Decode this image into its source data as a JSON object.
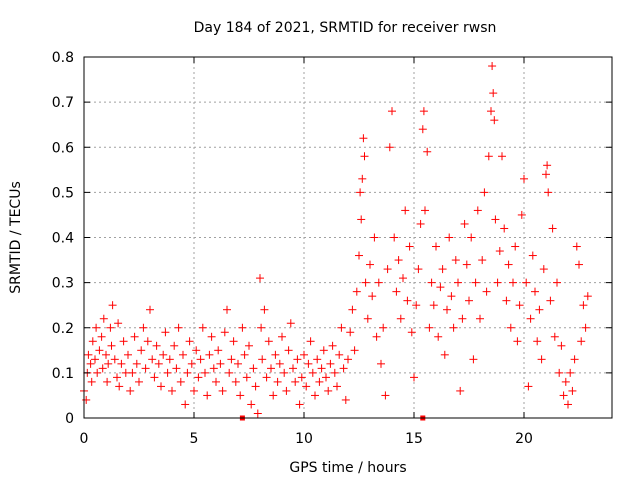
{
  "chart_data": {
    "type": "scatter",
    "title": "Day 184 of 2021, SRMTID for receiver rwsn",
    "xlabel": "GPS time / hours",
    "ylabel": "SRMTID / TECUs",
    "xlim": [
      0,
      24
    ],
    "ylim": [
      0,
      0.8
    ],
    "xticks": [
      0,
      5,
      10,
      15,
      20
    ],
    "yticks": [
      0,
      0.1,
      0.2,
      0.3,
      0.4,
      0.5,
      0.6,
      0.7,
      0.8
    ],
    "xtick_labels": [
      "0",
      "5",
      "10",
      "15",
      "20"
    ],
    "ytick_labels": [
      "0",
      "0.1",
      "0.2",
      "0.3",
      "0.4",
      "0.5",
      "0.6",
      "0.7",
      "0.8"
    ],
    "grid": true,
    "marker": "plus",
    "series": [
      {
        "name": "SRMTID",
        "color": "#ff0000",
        "points": [
          [
            0.0,
            0.06
          ],
          [
            0.1,
            0.04
          ],
          [
            0.15,
            0.1
          ],
          [
            0.2,
            0.14
          ],
          [
            0.3,
            0.12
          ],
          [
            0.35,
            0.08
          ],
          [
            0.4,
            0.17
          ],
          [
            0.5,
            0.13
          ],
          [
            0.55,
            0.2
          ],
          [
            0.6,
            0.1
          ],
          [
            0.7,
            0.15
          ],
          [
            0.8,
            0.18
          ],
          [
            0.85,
            0.11
          ],
          [
            0.9,
            0.22
          ],
          [
            1.0,
            0.14
          ],
          [
            1.05,
            0.08
          ],
          [
            1.1,
            0.12
          ],
          [
            1.2,
            0.2
          ],
          [
            1.25,
            0.16
          ],
          [
            1.3,
            0.25
          ],
          [
            1.4,
            0.13
          ],
          [
            1.5,
            0.09
          ],
          [
            1.55,
            0.21
          ],
          [
            1.6,
            0.07
          ],
          [
            1.7,
            0.12
          ],
          [
            1.8,
            0.17
          ],
          [
            1.9,
            0.1
          ],
          [
            2.0,
            0.14
          ],
          [
            2.1,
            0.06
          ],
          [
            2.2,
            0.1
          ],
          [
            2.3,
            0.18
          ],
          [
            2.4,
            0.12
          ],
          [
            2.5,
            0.08
          ],
          [
            2.6,
            0.15
          ],
          [
            2.7,
            0.2
          ],
          [
            2.8,
            0.11
          ],
          [
            2.9,
            0.17
          ],
          [
            3.0,
            0.24
          ],
          [
            3.1,
            0.13
          ],
          [
            3.2,
            0.09
          ],
          [
            3.3,
            0.16
          ],
          [
            3.4,
            0.12
          ],
          [
            3.5,
            0.07
          ],
          [
            3.6,
            0.14
          ],
          [
            3.7,
            0.19
          ],
          [
            3.8,
            0.1
          ],
          [
            3.9,
            0.13
          ],
          [
            4.0,
            0.06
          ],
          [
            4.1,
            0.16
          ],
          [
            4.2,
            0.11
          ],
          [
            4.3,
            0.2
          ],
          [
            4.4,
            0.08
          ],
          [
            4.5,
            0.14
          ],
          [
            4.6,
            0.03
          ],
          [
            4.7,
            0.1
          ],
          [
            4.8,
            0.17
          ],
          [
            4.9,
            0.12
          ],
          [
            5.0,
            0.06
          ],
          [
            5.1,
            0.15
          ],
          [
            5.2,
            0.09
          ],
          [
            5.3,
            0.13
          ],
          [
            5.4,
            0.2
          ],
          [
            5.5,
            0.1
          ],
          [
            5.6,
            0.05
          ],
          [
            5.7,
            0.14
          ],
          [
            5.8,
            0.18
          ],
          [
            5.9,
            0.11
          ],
          [
            6.0,
            0.08
          ],
          [
            6.1,
            0.15
          ],
          [
            6.2,
            0.12
          ],
          [
            6.3,
            0.06
          ],
          [
            6.4,
            0.19
          ],
          [
            6.5,
            0.24
          ],
          [
            6.6,
            0.1
          ],
          [
            6.7,
            0.13
          ],
          [
            6.8,
            0.17
          ],
          [
            6.9,
            0.08
          ],
          [
            7.0,
            0.12
          ],
          [
            7.1,
            0.05
          ],
          [
            7.2,
            0.2
          ],
          [
            7.3,
            0.14
          ],
          [
            7.4,
            0.09
          ],
          [
            7.5,
            0.16
          ],
          [
            7.6,
            0.03
          ],
          [
            7.7,
            0.11
          ],
          [
            7.8,
            0.07
          ],
          [
            7.9,
            0.01
          ],
          [
            8.0,
            0.31
          ],
          [
            8.05,
            0.2
          ],
          [
            8.1,
            0.13
          ],
          [
            8.2,
            0.24
          ],
          [
            8.3,
            0.09
          ],
          [
            8.4,
            0.17
          ],
          [
            8.5,
            0.11
          ],
          [
            8.6,
            0.05
          ],
          [
            8.7,
            0.14
          ],
          [
            8.8,
            0.08
          ],
          [
            8.9,
            0.12
          ],
          [
            9.0,
            0.18
          ],
          [
            9.1,
            0.1
          ],
          [
            9.2,
            0.06
          ],
          [
            9.3,
            0.15
          ],
          [
            9.4,
            0.21
          ],
          [
            9.5,
            0.11
          ],
          [
            9.6,
            0.08
          ],
          [
            9.7,
            0.13
          ],
          [
            9.8,
            0.03
          ],
          [
            9.9,
            0.09
          ],
          [
            10.0,
            0.14
          ],
          [
            10.1,
            0.07
          ],
          [
            10.2,
            0.12
          ],
          [
            10.3,
            0.17
          ],
          [
            10.4,
            0.1
          ],
          [
            10.5,
            0.05
          ],
          [
            10.6,
            0.13
          ],
          [
            10.7,
            0.08
          ],
          [
            10.8,
            0.11
          ],
          [
            10.9,
            0.15
          ],
          [
            11.0,
            0.09
          ],
          [
            11.1,
            0.06
          ],
          [
            11.2,
            0.12
          ],
          [
            11.3,
            0.16
          ],
          [
            11.4,
            0.1
          ],
          [
            11.5,
            0.07
          ],
          [
            11.6,
            0.14
          ],
          [
            11.7,
            0.2
          ],
          [
            11.8,
            0.11
          ],
          [
            11.9,
            0.04
          ],
          [
            12.0,
            0.13
          ],
          [
            12.1,
            0.19
          ],
          [
            12.2,
            0.24
          ],
          [
            12.3,
            0.15
          ],
          [
            12.4,
            0.28
          ],
          [
            12.5,
            0.36
          ],
          [
            12.55,
            0.5
          ],
          [
            12.6,
            0.44
          ],
          [
            12.65,
            0.53
          ],
          [
            12.7,
            0.62
          ],
          [
            12.75,
            0.58
          ],
          [
            12.8,
            0.3
          ],
          [
            12.9,
            0.22
          ],
          [
            13.0,
            0.34
          ],
          [
            13.1,
            0.27
          ],
          [
            13.2,
            0.4
          ],
          [
            13.3,
            0.18
          ],
          [
            13.4,
            0.3
          ],
          [
            13.5,
            0.12
          ],
          [
            13.6,
            0.2
          ],
          [
            13.7,
            0.05
          ],
          [
            13.8,
            0.33
          ],
          [
            13.9,
            0.6
          ],
          [
            14.0,
            0.68
          ],
          [
            14.1,
            0.4
          ],
          [
            14.2,
            0.28
          ],
          [
            14.3,
            0.35
          ],
          [
            14.4,
            0.22
          ],
          [
            14.5,
            0.31
          ],
          [
            14.6,
            0.46
          ],
          [
            14.7,
            0.26
          ],
          [
            14.8,
            0.38
          ],
          [
            14.9,
            0.19
          ],
          [
            15.0,
            0.09
          ],
          [
            15.1,
            0.25
          ],
          [
            15.2,
            0.33
          ],
          [
            15.3,
            0.43
          ],
          [
            15.4,
            0.64
          ],
          [
            15.45,
            0.68
          ],
          [
            15.5,
            0.46
          ],
          [
            15.6,
            0.59
          ],
          [
            15.7,
            0.2
          ],
          [
            15.8,
            0.3
          ],
          [
            15.9,
            0.25
          ],
          [
            16.0,
            0.38
          ],
          [
            16.1,
            0.18
          ],
          [
            16.2,
            0.29
          ],
          [
            16.3,
            0.33
          ],
          [
            16.4,
            0.14
          ],
          [
            16.5,
            0.24
          ],
          [
            16.6,
            0.4
          ],
          [
            16.7,
            0.27
          ],
          [
            16.8,
            0.2
          ],
          [
            16.9,
            0.35
          ],
          [
            17.0,
            0.3
          ],
          [
            17.1,
            0.06
          ],
          [
            17.2,
            0.22
          ],
          [
            17.3,
            0.43
          ],
          [
            17.4,
            0.34
          ],
          [
            17.5,
            0.26
          ],
          [
            17.6,
            0.4
          ],
          [
            17.7,
            0.13
          ],
          [
            17.8,
            0.3
          ],
          [
            17.9,
            0.46
          ],
          [
            18.0,
            0.22
          ],
          [
            18.1,
            0.35
          ],
          [
            18.2,
            0.5
          ],
          [
            18.3,
            0.28
          ],
          [
            18.4,
            0.58
          ],
          [
            18.5,
            0.68
          ],
          [
            18.55,
            0.78
          ],
          [
            18.6,
            0.72
          ],
          [
            18.65,
            0.66
          ],
          [
            18.7,
            0.44
          ],
          [
            18.8,
            0.3
          ],
          [
            18.9,
            0.37
          ],
          [
            19.0,
            0.58
          ],
          [
            19.1,
            0.42
          ],
          [
            19.2,
            0.26
          ],
          [
            19.3,
            0.34
          ],
          [
            19.4,
            0.2
          ],
          [
            19.5,
            0.3
          ],
          [
            19.6,
            0.38
          ],
          [
            19.7,
            0.17
          ],
          [
            19.8,
            0.25
          ],
          [
            19.9,
            0.45
          ],
          [
            20.0,
            0.53
          ],
          [
            20.1,
            0.3
          ],
          [
            20.2,
            0.07
          ],
          [
            20.3,
            0.22
          ],
          [
            20.4,
            0.36
          ],
          [
            20.5,
            0.28
          ],
          [
            20.6,
            0.17
          ],
          [
            20.7,
            0.24
          ],
          [
            20.8,
            0.13
          ],
          [
            20.9,
            0.33
          ],
          [
            21.0,
            0.54
          ],
          [
            21.05,
            0.56
          ],
          [
            21.1,
            0.5
          ],
          [
            21.2,
            0.26
          ],
          [
            21.3,
            0.42
          ],
          [
            21.4,
            0.18
          ],
          [
            21.5,
            0.3
          ],
          [
            21.6,
            0.1
          ],
          [
            21.7,
            0.16
          ],
          [
            21.8,
            0.05
          ],
          [
            21.9,
            0.08
          ],
          [
            22.0,
            0.03
          ],
          [
            22.1,
            0.1
          ],
          [
            22.2,
            0.06
          ],
          [
            22.3,
            0.13
          ],
          [
            22.4,
            0.38
          ],
          [
            22.5,
            0.34
          ],
          [
            22.6,
            0.17
          ],
          [
            22.7,
            0.25
          ],
          [
            22.8,
            0.2
          ],
          [
            22.9,
            0.27
          ]
        ]
      }
    ],
    "bottom_markers": [
      {
        "x": 7.2,
        "y": 0
      },
      {
        "x": 15.4,
        "y": 0
      }
    ]
  }
}
